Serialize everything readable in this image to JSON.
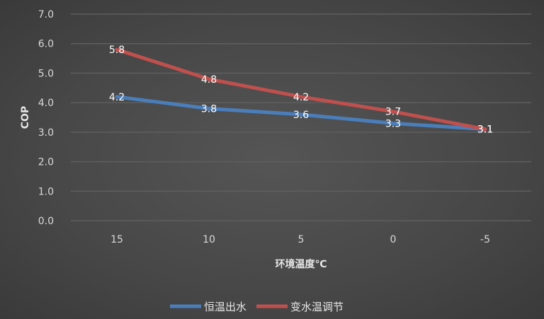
{
  "chart_data": {
    "type": "line",
    "title": "",
    "xlabel": "环境温度℃",
    "ylabel": "COP",
    "categories": [
      "15",
      "10",
      "5",
      "0",
      "-5"
    ],
    "ylim": [
      0,
      7
    ],
    "yticks": [
      "0.0",
      "1.0",
      "2.0",
      "3.0",
      "4.0",
      "5.0",
      "6.0",
      "7.0"
    ],
    "grid": true,
    "legend_position": "bottom",
    "series": [
      {
        "name": "恒温出水",
        "values": [
          4.2,
          3.8,
          3.6,
          3.3,
          3.1
        ],
        "labels": [
          "4.2",
          "3.8",
          "3.6",
          "3.3",
          "3.1"
        ],
        "color": "#4a7ebb"
      },
      {
        "name": "变水温调节",
        "values": [
          5.8,
          4.8,
          4.2,
          3.7,
          3.1
        ],
        "labels": [
          "5.8",
          "4.8",
          "4.2",
          "3.7",
          "3.1"
        ],
        "color": "#c0504d"
      }
    ]
  }
}
